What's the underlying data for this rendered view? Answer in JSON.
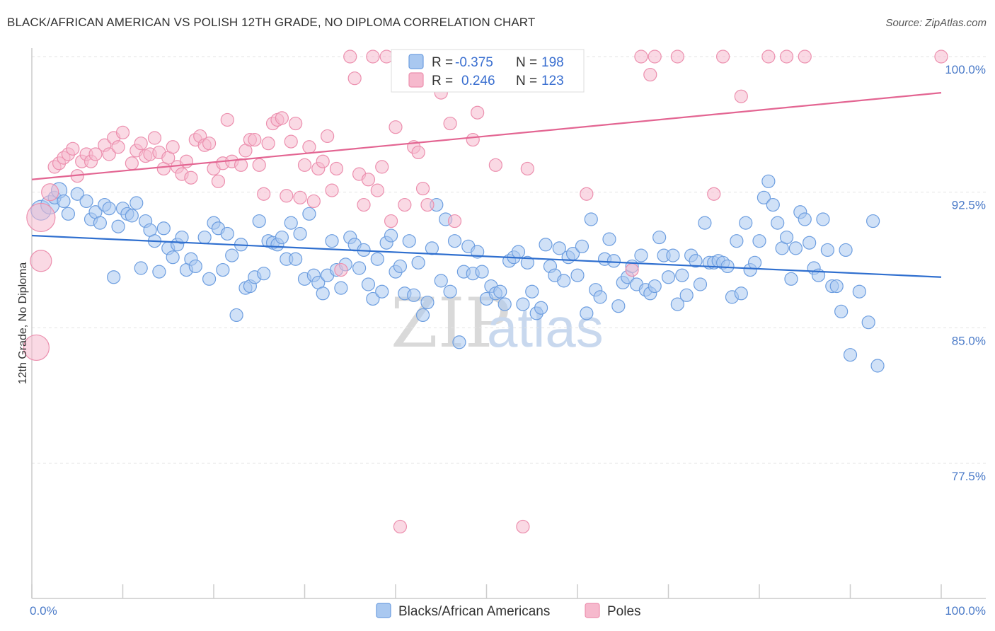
{
  "title": "BLACK/AFRICAN AMERICAN VS POLISH 12TH GRADE, NO DIPLOMA CORRELATION CHART",
  "source": "Source: ZipAtlas.com",
  "watermark": {
    "zip": "ZIP",
    "atlas": "atlas"
  },
  "legend_top": {
    "rows": [
      {
        "r_label": "R =",
        "r_value": "-0.375",
        "n_label": "N =",
        "n_value": "198"
      },
      {
        "r_label": "R =",
        "r_value": "0.246",
        "n_label": "N =",
        "n_value": "123"
      }
    ]
  },
  "chart_data": {
    "type": "scatter",
    "title": "BLACK/AFRICAN AMERICAN VS POLISH 12TH GRADE, NO DIPLOMA CORRELATION CHART",
    "xlabel": "",
    "ylabel": "12th Grade, No Diploma",
    "xlim": [
      0,
      100
    ],
    "ylim": [
      70,
      101.5
    ],
    "x_tick_labels": [
      "0.0%",
      "100.0%"
    ],
    "y_ticks": [
      77.5,
      85.0,
      92.5,
      100.0
    ],
    "y_tick_labels": [
      "77.5%",
      "85.0%",
      "92.5%",
      "100.0%"
    ],
    "grid": true,
    "legend_position": "bottom-center",
    "colors": {
      "blue_fill": "#a9c8f0",
      "blue_stroke": "#6d9ee0",
      "blue_line": "#2f6fcf",
      "pink_fill": "#f6b9cd",
      "pink_stroke": "#ec8fae",
      "pink_line": "#e36592"
    },
    "series": [
      {
        "name": "Blacks/African Americans",
        "r": -0.375,
        "n": 198,
        "trend": {
          "x": [
            0,
            100
          ],
          "y": [
            90.1,
            87.8
          ]
        },
        "points": [
          [
            1,
            91.5
          ],
          [
            2,
            91.8
          ],
          [
            2.5,
            92.2
          ],
          [
            3,
            92.6
          ],
          [
            3.5,
            92.0
          ],
          [
            4,
            91.3
          ],
          [
            5,
            92.4
          ],
          [
            6,
            92.0
          ],
          [
            6.5,
            91.0
          ],
          [
            7,
            91.4
          ],
          [
            7.5,
            90.8
          ],
          [
            8,
            91.8
          ],
          [
            8.5,
            91.6
          ],
          [
            9,
            87.8
          ],
          [
            9.5,
            90.6
          ],
          [
            10,
            91.6
          ],
          [
            10.5,
            91.3
          ],
          [
            11,
            91.2
          ],
          [
            11.5,
            91.9
          ],
          [
            12,
            88.3
          ],
          [
            12.5,
            90.9
          ],
          [
            13,
            90.4
          ],
          [
            13.5,
            89.8
          ],
          [
            14,
            88.1
          ],
          [
            14.5,
            90.5
          ],
          [
            15,
            89.4
          ],
          [
            15.5,
            88.9
          ],
          [
            16,
            89.6
          ],
          [
            16.5,
            90.0
          ],
          [
            17,
            88.2
          ],
          [
            17.5,
            88.8
          ],
          [
            18,
            88.4
          ],
          [
            19,
            90.0
          ],
          [
            19.5,
            87.7
          ],
          [
            20,
            90.8
          ],
          [
            20.5,
            90.5
          ],
          [
            21,
            88.2
          ],
          [
            21.5,
            90.2
          ],
          [
            22,
            89.0
          ],
          [
            22.5,
            85.7
          ],
          [
            23,
            89.6
          ],
          [
            23.5,
            87.2
          ],
          [
            24,
            87.3
          ],
          [
            24.5,
            87.8
          ],
          [
            25,
            90.9
          ],
          [
            25.5,
            88.0
          ],
          [
            26,
            89.8
          ],
          [
            26.5,
            89.7
          ],
          [
            27,
            89.6
          ],
          [
            27.5,
            90.0
          ],
          [
            28,
            88.8
          ],
          [
            28.5,
            90.8
          ],
          [
            29,
            88.8
          ],
          [
            29.5,
            90.2
          ],
          [
            30,
            87.7
          ],
          [
            30.5,
            91.3
          ],
          [
            31,
            87.9
          ],
          [
            31.5,
            87.5
          ],
          [
            32,
            86.9
          ],
          [
            32.5,
            87.9
          ],
          [
            33,
            89.8
          ],
          [
            33.5,
            88.2
          ],
          [
            34,
            87.2
          ],
          [
            34.5,
            88.5
          ],
          [
            35,
            90.0
          ],
          [
            35.5,
            89.6
          ],
          [
            36,
            88.3
          ],
          [
            36.5,
            89.3
          ],
          [
            37,
            87.4
          ],
          [
            37.5,
            86.6
          ],
          [
            38,
            88.8
          ],
          [
            38.5,
            87.0
          ],
          [
            39,
            89.7
          ],
          [
            39.5,
            90.1
          ],
          [
            40,
            88.1
          ],
          [
            40.5,
            88.4
          ],
          [
            41,
            86.9
          ],
          [
            41.5,
            89.8
          ],
          [
            42,
            86.8
          ],
          [
            42.5,
            88.6
          ],
          [
            43,
            85.7
          ],
          [
            43.5,
            86.4
          ],
          [
            44,
            89.4
          ],
          [
            44.5,
            91.8
          ],
          [
            45,
            87.6
          ],
          [
            45.5,
            91.0
          ],
          [
            46,
            87.0
          ],
          [
            46.5,
            89.8
          ],
          [
            47,
            84.2
          ],
          [
            47.5,
            88.1
          ],
          [
            48,
            89.5
          ],
          [
            48.5,
            88.0
          ],
          [
            49,
            89.2
          ],
          [
            49.5,
            88.1
          ],
          [
            50,
            86.6
          ],
          [
            50.5,
            87.3
          ],
          [
            51,
            86.9
          ],
          [
            51.5,
            87.0
          ],
          [
            52,
            86.3
          ],
          [
            52.5,
            88.7
          ],
          [
            53,
            88.9
          ],
          [
            53.5,
            89.2
          ],
          [
            54,
            86.3
          ],
          [
            54.5,
            88.6
          ],
          [
            55,
            87.0
          ],
          [
            55.5,
            85.8
          ],
          [
            56,
            86.1
          ],
          [
            56.5,
            89.6
          ],
          [
            57,
            88.4
          ],
          [
            57.5,
            87.9
          ],
          [
            58,
            89.4
          ],
          [
            58.5,
            87.6
          ],
          [
            59,
            88.9
          ],
          [
            59.5,
            89.1
          ],
          [
            60,
            87.9
          ],
          [
            60.5,
            89.5
          ],
          [
            61,
            85.8
          ],
          [
            61.5,
            91.0
          ],
          [
            62,
            87.1
          ],
          [
            62.5,
            86.7
          ],
          [
            63,
            88.8
          ],
          [
            63.5,
            89.9
          ],
          [
            64,
            88.7
          ],
          [
            64.5,
            86.2
          ],
          [
            65,
            87.5
          ],
          [
            65.5,
            87.8
          ],
          [
            66,
            88.4
          ],
          [
            66.5,
            87.4
          ],
          [
            67,
            89.0
          ],
          [
            67.5,
            87.1
          ],
          [
            68,
            86.9
          ],
          [
            68.5,
            87.3
          ],
          [
            69,
            90.0
          ],
          [
            69.5,
            89.0
          ],
          [
            70,
            87.8
          ],
          [
            70.5,
            89.0
          ],
          [
            71,
            86.3
          ],
          [
            71.5,
            87.9
          ],
          [
            72,
            86.8
          ],
          [
            72.5,
            89.0
          ],
          [
            73,
            88.7
          ],
          [
            73.5,
            87.4
          ],
          [
            74,
            90.8
          ],
          [
            74.5,
            88.6
          ],
          [
            75,
            88.6
          ],
          [
            75.5,
            88.7
          ],
          [
            76,
            88.6
          ],
          [
            76.5,
            88.4
          ],
          [
            77,
            86.7
          ],
          [
            77.5,
            89.8
          ],
          [
            78,
            86.9
          ],
          [
            78.5,
            90.8
          ],
          [
            79,
            88.2
          ],
          [
            79.5,
            88.6
          ],
          [
            80,
            89.8
          ],
          [
            80.5,
            92.2
          ],
          [
            81,
            93.1
          ],
          [
            81.5,
            91.8
          ],
          [
            82,
            90.8
          ],
          [
            82.5,
            89.4
          ],
          [
            83,
            90.0
          ],
          [
            83.5,
            87.7
          ],
          [
            84,
            89.4
          ],
          [
            84.5,
            91.4
          ],
          [
            85,
            91.0
          ],
          [
            85.5,
            89.7
          ],
          [
            86,
            88.3
          ],
          [
            86.5,
            87.9
          ],
          [
            87,
            91.0
          ],
          [
            87.5,
            89.3
          ],
          [
            88,
            87.3
          ],
          [
            88.5,
            87.3
          ],
          [
            89,
            85.9
          ],
          [
            89.5,
            89.3
          ],
          [
            90,
            83.5
          ],
          [
            91,
            87.0
          ],
          [
            92,
            85.3
          ],
          [
            92.5,
            90.9
          ],
          [
            93,
            82.9
          ]
        ]
      },
      {
        "name": "Poles",
        "r": 0.246,
        "n": 123,
        "trend": {
          "x": [
            0,
            100
          ],
          "y": [
            93.2,
            98.0
          ]
        },
        "points": [
          [
            0.5,
            83.9
          ],
          [
            1,
            91.1
          ],
          [
            1,
            88.7
          ],
          [
            2,
            92.5
          ],
          [
            2.5,
            93.9
          ],
          [
            3,
            94.1
          ],
          [
            3.5,
            94.4
          ],
          [
            4,
            94.6
          ],
          [
            4.5,
            94.9
          ],
          [
            5,
            93.4
          ],
          [
            5.5,
            94.2
          ],
          [
            6,
            94.6
          ],
          [
            6.5,
            94.2
          ],
          [
            7,
            94.6
          ],
          [
            8,
            95.1
          ],
          [
            8.5,
            94.6
          ],
          [
            9,
            95.5
          ],
          [
            9.5,
            95.0
          ],
          [
            10,
            95.8
          ],
          [
            11,
            94.1
          ],
          [
            11.5,
            94.8
          ],
          [
            12,
            95.2
          ],
          [
            12.5,
            94.5
          ],
          [
            13,
            94.6
          ],
          [
            13.5,
            95.5
          ],
          [
            14,
            94.7
          ],
          [
            14.5,
            93.8
          ],
          [
            15,
            94.4
          ],
          [
            15.5,
            95.0
          ],
          [
            16,
            93.9
          ],
          [
            16.5,
            93.5
          ],
          [
            17,
            94.2
          ],
          [
            17.5,
            93.3
          ],
          [
            18,
            95.4
          ],
          [
            18.5,
            95.6
          ],
          [
            19,
            95.1
          ],
          [
            19.5,
            95.2
          ],
          [
            20,
            93.8
          ],
          [
            20.5,
            93.1
          ],
          [
            21,
            94.1
          ],
          [
            21.5,
            96.5
          ],
          [
            22,
            94.2
          ],
          [
            23,
            94.0
          ],
          [
            23.5,
            94.8
          ],
          [
            24,
            95.4
          ],
          [
            24.5,
            95.4
          ],
          [
            25,
            94.0
          ],
          [
            25.5,
            92.4
          ],
          [
            26,
            95.2
          ],
          [
            26.5,
            96.3
          ],
          [
            27,
            96.5
          ],
          [
            27.5,
            96.6
          ],
          [
            28,
            92.3
          ],
          [
            28.5,
            95.3
          ],
          [
            29,
            96.3
          ],
          [
            29.5,
            92.2
          ],
          [
            30,
            94.0
          ],
          [
            30.5,
            95.0
          ],
          [
            31,
            92.0
          ],
          [
            31.5,
            93.8
          ],
          [
            32,
            94.2
          ],
          [
            32.5,
            95.6
          ],
          [
            33,
            92.6
          ],
          [
            33.5,
            93.8
          ],
          [
            34,
            88.2
          ],
          [
            35,
            100.0
          ],
          [
            35.5,
            98.8
          ],
          [
            36,
            93.5
          ],
          [
            36.5,
            91.8
          ],
          [
            37,
            93.2
          ],
          [
            37.5,
            100.0
          ],
          [
            38,
            92.6
          ],
          [
            38.5,
            93.9
          ],
          [
            39,
            100.0
          ],
          [
            39.5,
            90.9
          ],
          [
            40,
            96.1
          ],
          [
            40.5,
            74.0
          ],
          [
            41,
            91.8
          ],
          [
            41.5,
            100.0
          ],
          [
            42,
            95.0
          ],
          [
            42.5,
            94.7
          ],
          [
            43,
            92.7
          ],
          [
            43.5,
            91.8
          ],
          [
            44,
            100.0
          ],
          [
            44.5,
            100.0
          ],
          [
            45,
            98.0
          ],
          [
            46,
            96.3
          ],
          [
            46.5,
            90.9
          ],
          [
            47,
            100.0
          ],
          [
            48,
            100.0
          ],
          [
            48.5,
            95.4
          ],
          [
            49,
            96.9
          ],
          [
            49.5,
            100.0
          ],
          [
            50,
            100.0
          ],
          [
            51,
            94.0
          ],
          [
            52,
            100.0
          ],
          [
            53,
            100.0
          ],
          [
            54,
            74.0
          ],
          [
            54.5,
            93.8
          ],
          [
            55,
            100.0
          ],
          [
            56,
            100.0
          ],
          [
            58,
            100.0
          ],
          [
            61,
            92.4
          ],
          [
            66,
            88.2
          ],
          [
            67,
            100.0
          ],
          [
            68,
            99.0
          ],
          [
            68.5,
            100.0
          ],
          [
            71,
            100.0
          ],
          [
            75,
            92.4
          ],
          [
            76,
            100.0
          ],
          [
            78,
            97.8
          ],
          [
            81,
            100.0
          ],
          [
            83,
            100.0
          ],
          [
            85,
            100.0
          ],
          [
            100,
            100.0
          ]
        ]
      }
    ]
  },
  "bottom_legend": [
    "Blacks/African Americans",
    "Poles"
  ]
}
